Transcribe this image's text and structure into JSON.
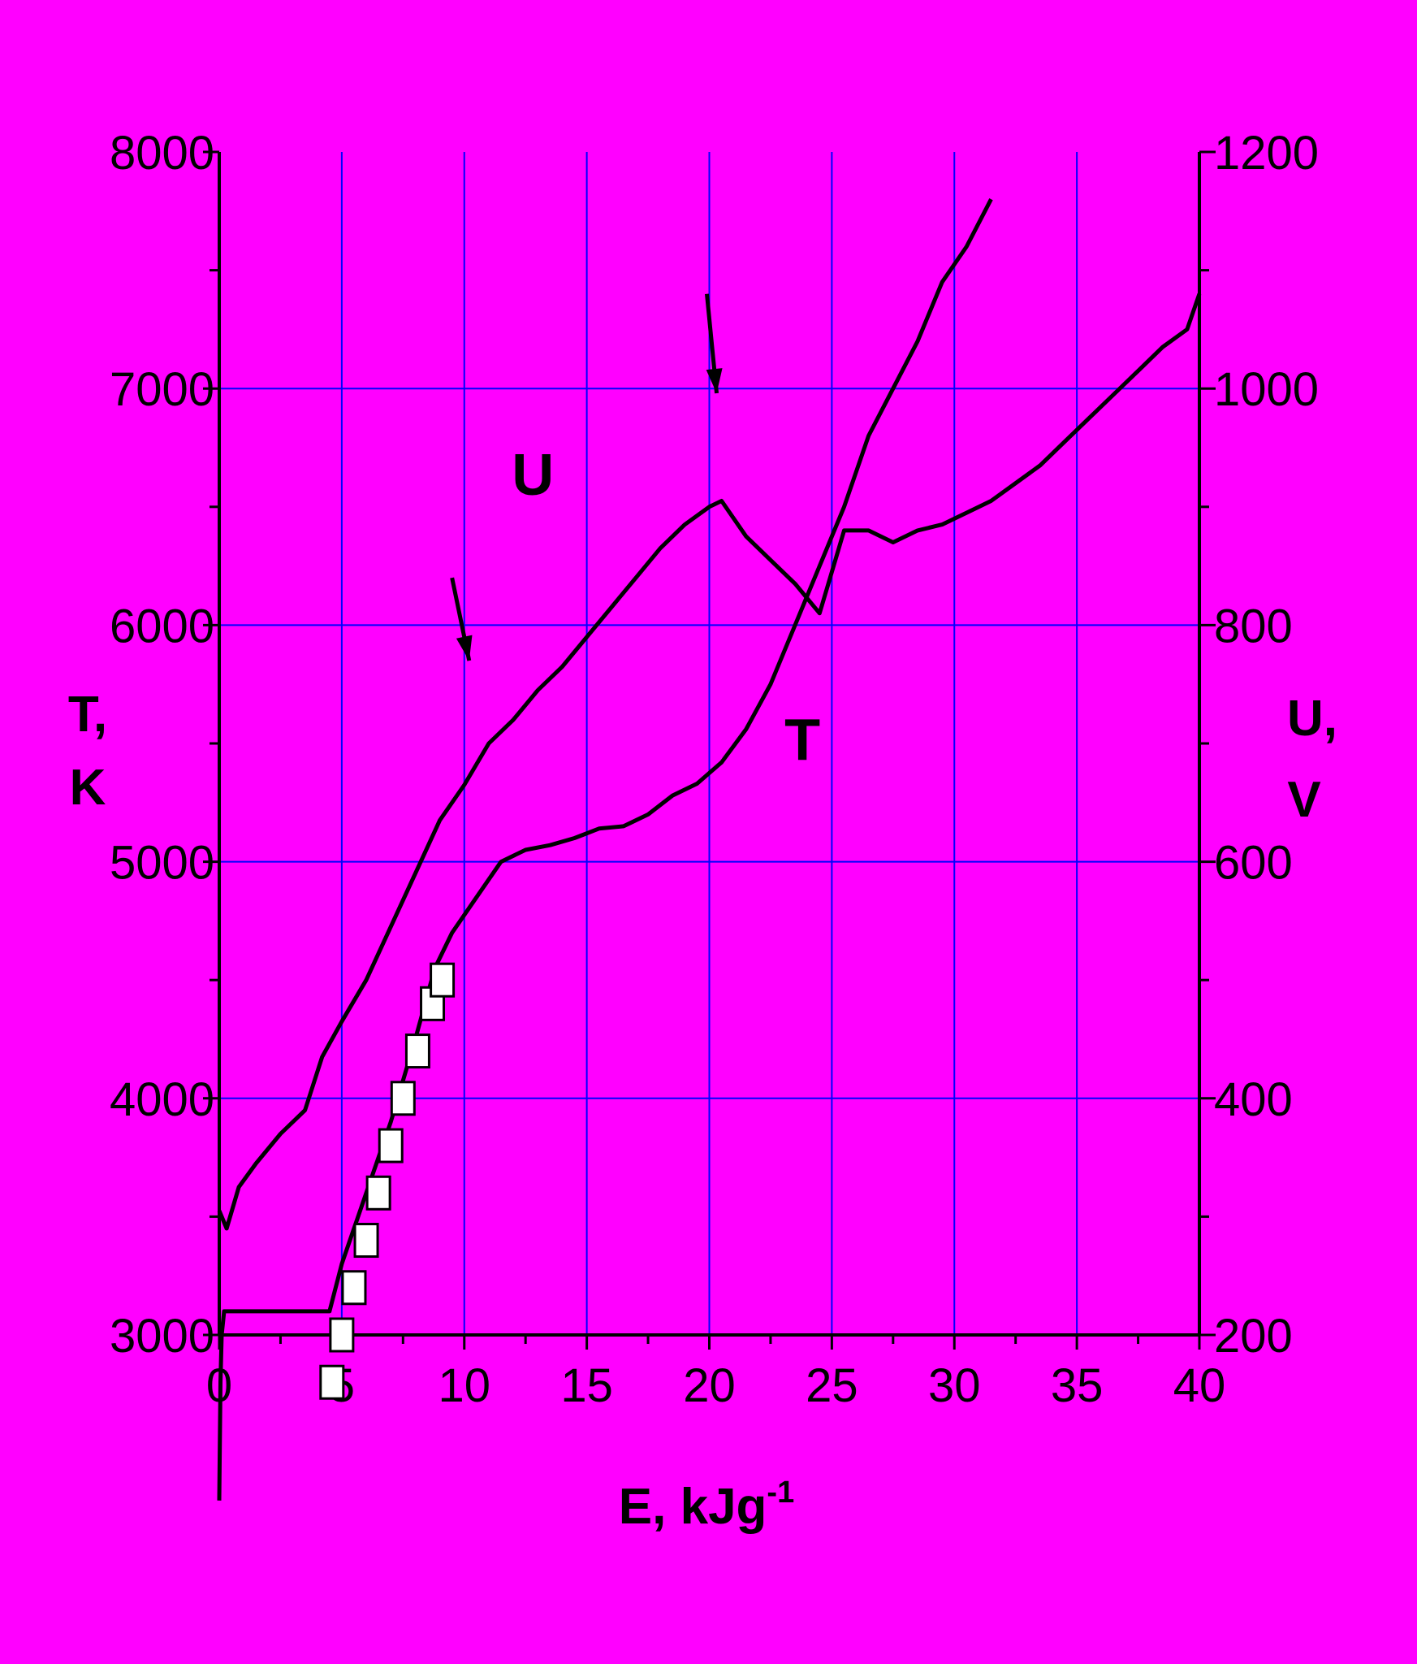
{
  "chart_data": {
    "type": "line",
    "colors": {
      "background": "#ff00ff",
      "grid": "#0000ff",
      "line": "#000000",
      "marker_fill": "#ffffff"
    },
    "grid": true,
    "x_axis": {
      "label": "E, kJg",
      "label_sup": "-1",
      "range": [
        0,
        40
      ],
      "ticks": [
        0,
        5,
        10,
        15,
        20,
        25,
        30,
        35,
        40
      ]
    },
    "y_axis_left": {
      "label_line1": "T,",
      "label_line2": "K",
      "range": [
        3000,
        8000
      ],
      "ticks": [
        3000,
        4000,
        5000,
        6000,
        7000,
        8000
      ]
    },
    "y_axis_right": {
      "label_line1": "U,",
      "label_line2": "V",
      "range": [
        200,
        1200
      ],
      "ticks": [
        200,
        400,
        600,
        800,
        1000,
        1200
      ]
    },
    "series": [
      {
        "name": "U",
        "axis": "right",
        "style": "line",
        "x": [
          0,
          0.3,
          0.8,
          1.5,
          2.5,
          3.5,
          4.2,
          5.0,
          6.0,
          7.0,
          8.0,
          9.0,
          10.0,
          11.0,
          12.0,
          13.0,
          14.0,
          15.0,
          16.0,
          17.0,
          18.0,
          19.0,
          20.0,
          20.5,
          21.5,
          22.5,
          23.5,
          24.5,
          25.5,
          26.5,
          27.5,
          28.5,
          29.5,
          30.5,
          31.5,
          32.5,
          33.5,
          34.5,
          35.5,
          36.5,
          37.5,
          38.5,
          39.5,
          40.0
        ],
        "y": [
          305,
          290,
          325,
          345,
          370,
          390,
          435,
          465,
          500,
          545,
          590,
          635,
          665,
          700,
          720,
          745,
          765,
          790,
          815,
          840,
          865,
          885,
          900,
          905,
          875,
          855,
          835,
          810,
          880,
          880,
          870,
          880,
          885,
          895,
          905,
          920,
          935,
          955,
          975,
          995,
          1015,
          1035,
          1050,
          1080
        ]
      },
      {
        "name": "T",
        "axis": "left",
        "style": "line",
        "x": [
          0,
          0.05,
          0.1,
          0.2,
          4.5,
          5.0,
          6.0,
          7.0,
          8.0,
          8.8,
          9.5,
          10.5,
          11.5,
          12.5,
          13.5,
          14.5,
          15.5,
          16.5,
          17.5,
          18.5,
          19.5,
          20.5,
          21.5,
          22.5,
          23.5,
          24.5,
          25.5,
          26.5,
          27.5,
          28.5,
          29.5,
          30.5,
          31.5
        ],
        "y": [
          2300,
          2800,
          3000,
          3100,
          3100,
          3300,
          3600,
          3900,
          4250,
          4550,
          4700,
          4850,
          5000,
          5050,
          5070,
          5100,
          5140,
          5150,
          5200,
          5280,
          5330,
          5420,
          5560,
          5750,
          6000,
          6250,
          6500,
          6800,
          7000,
          7200,
          7450,
          7600,
          7800
        ]
      },
      {
        "name": "squares",
        "axis": "left",
        "style": "marker",
        "x": [
          4.6,
          5.0,
          5.5,
          6.0,
          6.5,
          7.0,
          7.5,
          8.1,
          8.7,
          9.1
        ],
        "y": [
          2800,
          3000,
          3200,
          3400,
          3600,
          3800,
          4000,
          4200,
          4400,
          4500
        ]
      }
    ],
    "annotations": [
      {
        "type": "arrow",
        "from_x": 9.5,
        "from_y": 6200,
        "to_x": 10.2,
        "to_y": 5850
      },
      {
        "type": "arrow",
        "from_x": 19.9,
        "from_y": 7400,
        "to_x": 20.3,
        "to_y": 6980
      }
    ],
    "curve_labels": [
      {
        "text": "U",
        "x": 12.8,
        "y": 6550
      },
      {
        "text": "T",
        "x": 23.8,
        "y": 5430
      }
    ]
  }
}
